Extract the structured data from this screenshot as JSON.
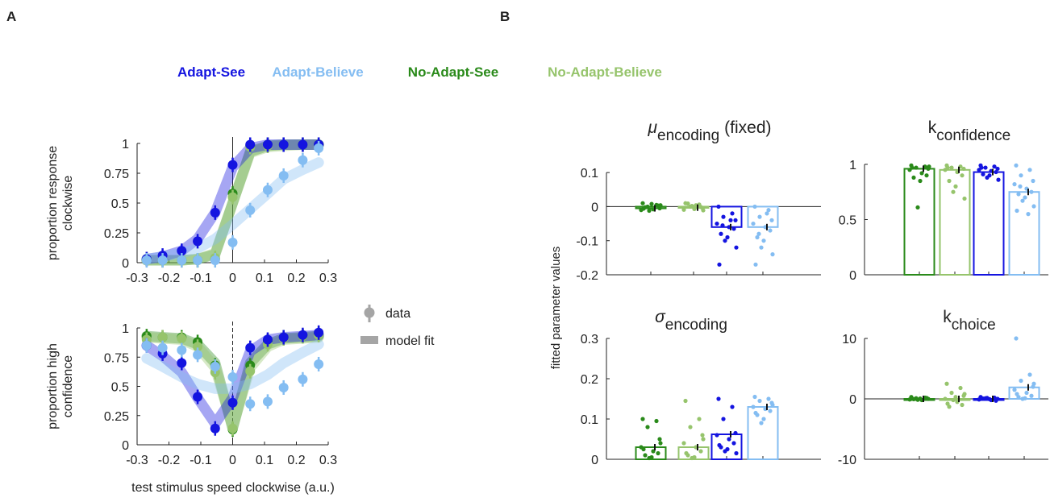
{
  "figure": {
    "panel_a_letter": "A",
    "panel_b_letter": "B",
    "colors": {
      "adapt_see": "#1414e0",
      "adapt_believe": "#84bdf2",
      "no_adapt_see": "#2a8a1a",
      "no_adapt_believe": "#96c46c",
      "model_legend": "#a5a5a5"
    },
    "legend_top": [
      "Adapt-See",
      "Adapt-Believe",
      "No-Adapt-See",
      "No-Adapt-Believe"
    ],
    "legend_side": {
      "data": "data",
      "model": "model fit"
    },
    "panel_a_xlabel": "test stimulus speed clockwise (a.u.)",
    "panel_b_ylabel": "fitted parameter values"
  },
  "chart_data": [
    {
      "id": "a_top",
      "type": "line",
      "ylabel_lines": [
        "proportion response",
        "clockwise"
      ],
      "x": [
        -0.27,
        -0.22,
        -0.16,
        -0.11,
        -0.055,
        0,
        0.055,
        0.11,
        0.16,
        0.22,
        0.27
      ],
      "xlim": [
        -0.3,
        0.3
      ],
      "ylim": [
        0,
        1
      ],
      "xticks": [
        "-0.3",
        "-0.2",
        "-0.1",
        "0",
        "0.1",
        "0.2",
        "0.3"
      ],
      "yticks": [
        "0",
        "0.25",
        "0.5",
        "0.75",
        "1"
      ],
      "series": [
        {
          "name": "No-Adapt-See",
          "data": [
            0.03,
            0.02,
            0.02,
            0.02,
            0.03,
            0.58,
            0.98,
            0.99,
            0.99,
            0.99,
            0.99
          ],
          "model": [
            0.02,
            0.02,
            0.02,
            0.03,
            0.07,
            0.5,
            0.93,
            0.98,
            0.99,
            0.99,
            0.99
          ]
        },
        {
          "name": "No-Adapt-Believe",
          "data": [
            0.03,
            0.02,
            0.02,
            0.02,
            0.04,
            0.55,
            0.97,
            0.98,
            0.99,
            0.99,
            0.98
          ],
          "model": [
            0.02,
            0.02,
            0.02,
            0.03,
            0.08,
            0.5,
            0.92,
            0.97,
            0.98,
            0.99,
            0.99
          ]
        },
        {
          "name": "Adapt-See",
          "data": [
            0.03,
            0.06,
            0.1,
            0.18,
            0.42,
            0.82,
            0.99,
            0.99,
            0.99,
            0.99,
            0.99
          ],
          "model": [
            0.03,
            0.05,
            0.1,
            0.2,
            0.42,
            0.8,
            0.96,
            0.99,
            0.99,
            0.99,
            0.99
          ]
        },
        {
          "name": "Adapt-Believe",
          "data": [
            0.02,
            0.02,
            0.02,
            0.02,
            0.02,
            0.17,
            0.44,
            0.61,
            0.73,
            0.86,
            0.96
          ],
          "model": [
            0.03,
            0.05,
            0.08,
            0.12,
            0.2,
            0.32,
            0.45,
            0.58,
            0.7,
            0.78,
            0.84
          ]
        }
      ]
    },
    {
      "id": "a_bottom",
      "type": "line",
      "ylabel_lines": [
        "proportion high",
        "confidence"
      ],
      "x": [
        -0.27,
        -0.22,
        -0.16,
        -0.11,
        -0.055,
        0,
        0.055,
        0.11,
        0.16,
        0.22,
        0.27
      ],
      "xlim": [
        -0.3,
        0.3
      ],
      "ylim": [
        0,
        1
      ],
      "xticks": [
        "-0.3",
        "-0.2",
        "-0.1",
        "0",
        "0.1",
        "0.2",
        "0.3"
      ],
      "yticks": [
        "0",
        "0.25",
        "0.5",
        "0.75",
        "1"
      ],
      "series": [
        {
          "name": "No-Adapt-See",
          "data": [
            0.93,
            0.92,
            0.92,
            0.88,
            0.68,
            0.13,
            0.68,
            0.89,
            0.92,
            0.93,
            0.95
          ],
          "model": [
            0.93,
            0.92,
            0.91,
            0.86,
            0.7,
            0.14,
            0.7,
            0.86,
            0.91,
            0.92,
            0.93
          ]
        },
        {
          "name": "No-Adapt-Believe",
          "data": [
            0.9,
            0.92,
            0.91,
            0.84,
            0.62,
            0.14,
            0.63,
            0.86,
            0.91,
            0.93,
            0.94
          ],
          "model": [
            0.92,
            0.91,
            0.9,
            0.84,
            0.66,
            0.15,
            0.66,
            0.84,
            0.9,
            0.91,
            0.92
          ]
        },
        {
          "name": "Adapt-See",
          "data": [
            0.85,
            0.78,
            0.7,
            0.41,
            0.14,
            0.36,
            0.83,
            0.9,
            0.92,
            0.94,
            0.96
          ],
          "model": [
            0.85,
            0.76,
            0.62,
            0.4,
            0.18,
            0.4,
            0.8,
            0.9,
            0.92,
            0.93,
            0.94
          ]
        },
        {
          "name": "Adapt-Believe",
          "data": [
            0.85,
            0.83,
            0.81,
            0.77,
            0.67,
            0.58,
            0.35,
            0.37,
            0.49,
            0.56,
            0.69
          ],
          "model": [
            0.74,
            0.67,
            0.58,
            0.52,
            0.48,
            0.48,
            0.52,
            0.6,
            0.7,
            0.79,
            0.86
          ]
        }
      ]
    },
    {
      "id": "b_mu",
      "type": "bar",
      "title_symbol": "μ",
      "title_sub": "encoding",
      "title_suffix": "(fixed)",
      "groups": [
        "No-Adapt-See",
        "No-Adapt-Believe",
        "Adapt-See",
        "Adapt-Believe"
      ],
      "values": [
        -0.005,
        -0.003,
        -0.06,
        -0.06
      ],
      "ylim": [
        -0.2,
        0.15
      ],
      "yticks": [
        -0.2,
        -0.1,
        0,
        0.1
      ],
      "ytick_labels": [
        "-0.2",
        "-0.1",
        "0",
        "0.1"
      ],
      "zero_line": true,
      "points": [
        [
          0.01,
          0.005,
          0.0,
          -0.005,
          -0.01,
          -0.008,
          0.003,
          -0.002,
          0.008,
          -0.012,
          0.004,
          -0.006
        ],
        [
          0.01,
          0.006,
          0.0,
          -0.004,
          -0.009,
          0.004,
          -0.001,
          0.009,
          -0.007,
          0.002,
          -0.011
        ],
        [
          0.0,
          -0.02,
          -0.03,
          -0.04,
          -0.05,
          -0.06,
          -0.065,
          -0.08,
          -0.09,
          -0.1,
          -0.12,
          -0.17,
          -0.04,
          -0.055
        ],
        [
          0.0,
          -0.01,
          -0.03,
          -0.04,
          -0.05,
          -0.06,
          -0.07,
          -0.09,
          -0.1,
          -0.12,
          -0.14,
          -0.17,
          -0.02,
          -0.08
        ]
      ]
    },
    {
      "id": "b_kconf",
      "type": "bar",
      "title_symbol": "k",
      "title_sub": "confidence",
      "title_suffix": "",
      "groups": [
        "No-Adapt-See",
        "No-Adapt-Believe",
        "Adapt-See",
        "Adapt-Believe"
      ],
      "values": [
        0.96,
        0.95,
        0.93,
        0.75
      ],
      "ylim": [
        0,
        1.08
      ],
      "yticks": [
        0,
        0.5,
        1
      ],
      "ytick_labels": [
        "0",
        "0.5",
        "1"
      ],
      "zero_line": false,
      "points": [
        [
          0.99,
          0.98,
          0.97,
          0.96,
          0.95,
          0.92,
          0.9,
          0.88,
          0.85,
          0.61,
          0.98,
          0.97
        ],
        [
          0.99,
          0.98,
          0.97,
          0.96,
          0.95,
          0.93,
          0.9,
          0.85,
          0.8,
          0.75,
          0.69,
          0.97
        ],
        [
          0.99,
          0.98,
          0.97,
          0.96,
          0.95,
          0.94,
          0.93,
          0.91,
          0.9,
          0.88,
          0.86,
          0.97
        ],
        [
          0.99,
          0.95,
          0.9,
          0.85,
          0.82,
          0.78,
          0.75,
          0.73,
          0.7,
          0.67,
          0.62,
          0.58,
          0.55,
          0.8
        ]
      ]
    },
    {
      "id": "b_sigma",
      "type": "bar",
      "title_symbol": "σ",
      "title_sub": "encoding",
      "title_suffix": "",
      "groups": [
        "No-Adapt-See",
        "No-Adapt-Believe",
        "Adapt-See",
        "Adapt-Believe"
      ],
      "values": [
        0.03,
        0.03,
        0.062,
        0.13
      ],
      "ylim": [
        0,
        0.3
      ],
      "yticks": [
        0,
        0.1,
        0.2,
        0.3
      ],
      "ytick_labels": [
        "0",
        "0.1",
        "0.2",
        "0.3"
      ],
      "zero_line": false,
      "points": [
        [
          0.1,
          0.095,
          0.08,
          0.05,
          0.03,
          0.02,
          0.015,
          0.01,
          0.005,
          0.003,
          0.04,
          0.025
        ],
        [
          0.145,
          0.1,
          0.08,
          0.06,
          0.04,
          0.03,
          0.02,
          0.01,
          0.005,
          0.003,
          0.05,
          0.015
        ],
        [
          0.15,
          0.13,
          0.1,
          0.065,
          0.06,
          0.05,
          0.04,
          0.03,
          0.025,
          0.02,
          0.015,
          0.035
        ],
        [
          0.155,
          0.15,
          0.145,
          0.14,
          0.13,
          0.125,
          0.12,
          0.11,
          0.1,
          0.09,
          0.135,
          0.115
        ]
      ]
    },
    {
      "id": "b_kchoice",
      "type": "bar",
      "title_symbol": "k",
      "title_sub": "choice",
      "title_suffix": "",
      "groups": [
        "No-Adapt-See",
        "No-Adapt-Believe",
        "Adapt-See",
        "Adapt-Believe"
      ],
      "values": [
        0.0,
        0.0,
        0.0,
        1.9
      ],
      "ylim": [
        -10,
        10
      ],
      "yticks": [
        -10,
        0,
        10
      ],
      "ytick_labels": [
        "-10",
        "0",
        "10"
      ],
      "zero_line": true,
      "points": [
        [
          0.3,
          0.2,
          0.1,
          0.0,
          -0.1,
          -0.2,
          0.15,
          -0.05,
          0.05,
          -0.15
        ],
        [
          2.5,
          1.8,
          1.0,
          0.5,
          0.0,
          -0.5,
          -1.0,
          -1.3,
          0.3,
          -0.2,
          0.8,
          -0.8
        ],
        [
          0.3,
          0.2,
          0.1,
          0.0,
          -0.1,
          -0.2,
          -0.3,
          0.05,
          -0.05,
          0.15
        ],
        [
          10.0,
          4.0,
          3.0,
          2.0,
          1.5,
          1.0,
          0.5,
          0.3,
          0.1,
          0.0,
          2.5,
          0.8
        ]
      ]
    }
  ]
}
